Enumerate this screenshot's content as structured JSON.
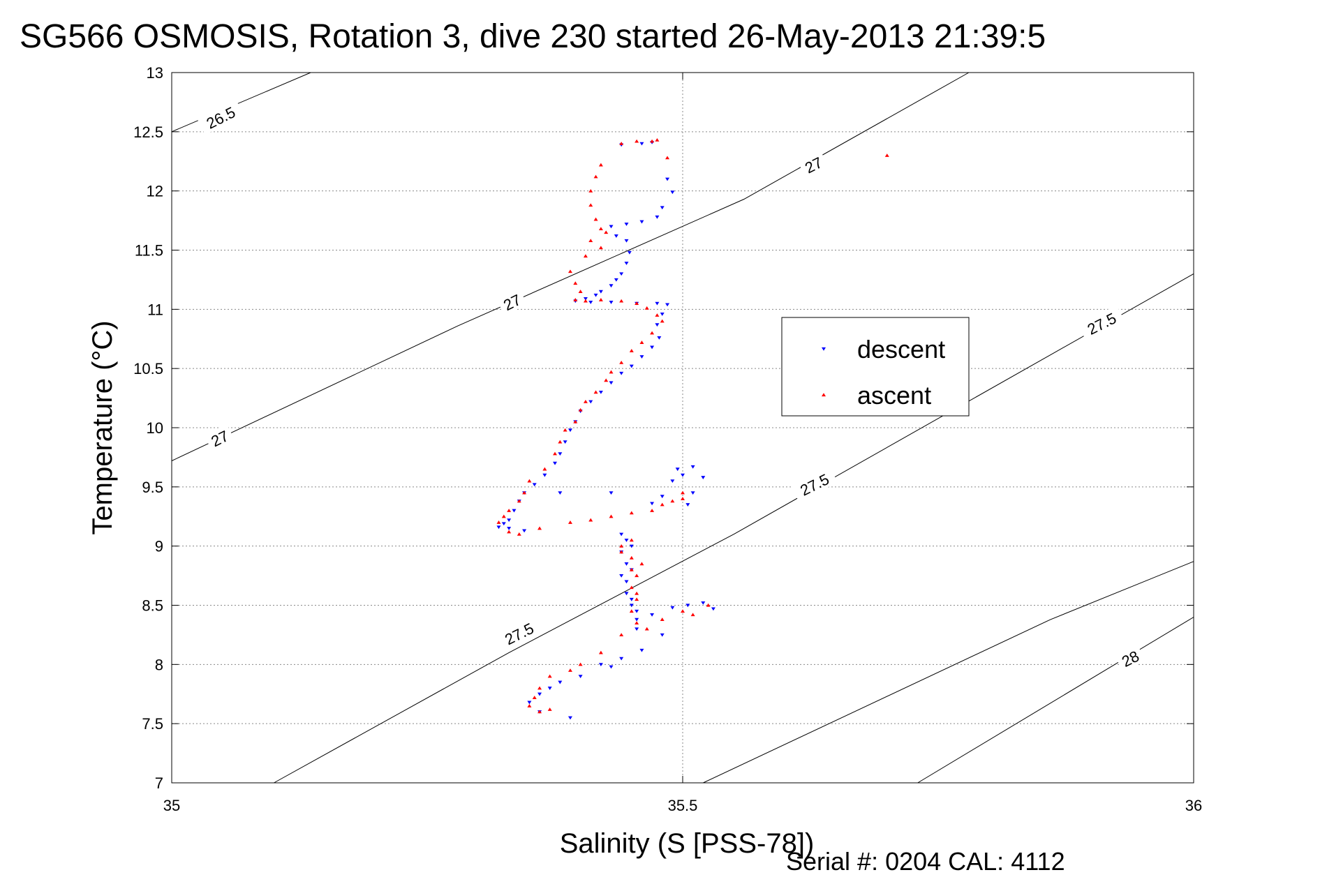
{
  "chart_data": {
    "type": "scatter",
    "title": "SG566 OSMOSIS, Rotation 3, dive 230 started 26-May-2013 21:39:5",
    "xlabel": "Salinity (S [PSS-78])",
    "ylabel": "Temperature (°C)",
    "footer": "Serial #: 0204  CAL: 4112",
    "xlim": [
      35,
      36
    ],
    "ylim": [
      7,
      13
    ],
    "xticks": [
      35,
      35.5,
      36
    ],
    "xtick_labels": [
      "35",
      "35.5",
      "36"
    ],
    "yticks": [
      7,
      7.5,
      8,
      8.5,
      9,
      9.5,
      10,
      10.5,
      11,
      11.5,
      12,
      12.5,
      13
    ],
    "ytick_labels": [
      "7",
      "7.5",
      "8",
      "8.5",
      "9",
      "9.5",
      "10",
      "10.5",
      "11",
      "11.5",
      "12",
      "12.5",
      "13"
    ],
    "grid": true,
    "legend": {
      "position": "right",
      "entries": [
        "descent",
        "ascent"
      ]
    },
    "colors": {
      "descent": "#0000ff",
      "ascent": "#ff0000",
      "contour": "#000000"
    },
    "contours": [
      {
        "value": 26.5,
        "label": "26.5",
        "points": [
          [
            35,
            12.5
          ],
          [
            35.136,
            13
          ]
        ]
      },
      {
        "value": 27,
        "label": "27",
        "points": [
          [
            35,
            9.72
          ],
          [
            35.28,
            10.86
          ],
          [
            35.56,
            11.93
          ],
          [
            35.78,
            13
          ]
        ]
      },
      {
        "value": 27,
        "label": "27",
        "points": [
          [
            35.52,
            7
          ],
          [
            35.86,
            8.38
          ],
          [
            36,
            8.87
          ]
        ]
      },
      {
        "value": 27.5,
        "label": "27.5",
        "points": [
          [
            35.1,
            7
          ],
          [
            35.33,
            8.1
          ],
          [
            35.55,
            9.1
          ],
          [
            36,
            11.3
          ]
        ]
      },
      {
        "value": 28,
        "label": "28",
        "points": [
          [
            35.73,
            7
          ],
          [
            36,
            8.4
          ]
        ]
      }
    ],
    "contour_labels": [
      {
        "text": "26.5",
        "x": 35.048,
        "y": 12.62
      },
      {
        "text": "27",
        "x": 35.333,
        "y": 11.06
      },
      {
        "text": "27",
        "x": 35.628,
        "y": 12.22
      },
      {
        "text": "27",
        "x": 35.047,
        "y": 9.91
      },
      {
        "text": "27.5",
        "x": 35.34,
        "y": 8.26
      },
      {
        "text": "27.5",
        "x": 35.629,
        "y": 9.52
      },
      {
        "text": "27.5",
        "x": 35.91,
        "y": 10.88
      },
      {
        "text": "28",
        "x": 35.938,
        "y": 8.05
      }
    ],
    "series": [
      {
        "name": "descent",
        "marker": "triangle-down",
        "points": [
          [
            35.44,
            12.39
          ],
          [
            35.46,
            12.4
          ],
          [
            35.47,
            12.41
          ],
          [
            35.485,
            12.1
          ],
          [
            35.49,
            11.99
          ],
          [
            35.48,
            11.86
          ],
          [
            35.475,
            11.78
          ],
          [
            35.46,
            11.74
          ],
          [
            35.445,
            11.72
          ],
          [
            35.43,
            11.7
          ],
          [
            35.435,
            11.62
          ],
          [
            35.445,
            11.58
          ],
          [
            35.448,
            11.48
          ],
          [
            35.445,
            11.39
          ],
          [
            35.44,
            11.3
          ],
          [
            35.435,
            11.25
          ],
          [
            35.43,
            11.2
          ],
          [
            35.42,
            11.15
          ],
          [
            35.415,
            11.12
          ],
          [
            35.405,
            11.09
          ],
          [
            35.395,
            11.07
          ],
          [
            35.41,
            11.06
          ],
          [
            35.43,
            11.06
          ],
          [
            35.455,
            11.05
          ],
          [
            35.475,
            11.05
          ],
          [
            35.485,
            11.04
          ],
          [
            35.48,
            10.96
          ],
          [
            35.475,
            10.87
          ],
          [
            35.477,
            10.76
          ],
          [
            35.47,
            10.68
          ],
          [
            35.46,
            10.6
          ],
          [
            35.45,
            10.52
          ],
          [
            35.44,
            10.46
          ],
          [
            35.43,
            10.38
          ],
          [
            35.42,
            10.3
          ],
          [
            35.41,
            10.22
          ],
          [
            35.4,
            10.14
          ],
          [
            35.395,
            10.05
          ],
          [
            35.39,
            9.98
          ],
          [
            35.385,
            9.88
          ],
          [
            35.38,
            9.78
          ],
          [
            35.375,
            9.7
          ],
          [
            35.365,
            9.6
          ],
          [
            35.355,
            9.52
          ],
          [
            35.345,
            9.45
          ],
          [
            35.34,
            9.38
          ],
          [
            35.335,
            9.3
          ],
          [
            35.33,
            9.22
          ],
          [
            35.325,
            9.19
          ],
          [
            35.32,
            9.16
          ],
          [
            35.33,
            9.15
          ],
          [
            35.345,
            9.13
          ],
          [
            35.38,
            9.45
          ],
          [
            35.43,
            9.45
          ],
          [
            35.47,
            9.36
          ],
          [
            35.48,
            9.42
          ],
          [
            35.49,
            9.55
          ],
          [
            35.495,
            9.65
          ],
          [
            35.5,
            9.6
          ],
          [
            35.51,
            9.67
          ],
          [
            35.52,
            9.58
          ],
          [
            35.51,
            9.45
          ],
          [
            35.505,
            9.35
          ],
          [
            35.44,
            9.1
          ],
          [
            35.445,
            9.05
          ],
          [
            35.45,
            9.0
          ],
          [
            35.44,
            8.95
          ],
          [
            35.445,
            8.85
          ],
          [
            35.45,
            8.8
          ],
          [
            35.44,
            8.75
          ],
          [
            35.445,
            8.7
          ],
          [
            35.445,
            8.6
          ],
          [
            35.45,
            8.55
          ],
          [
            35.45,
            8.5
          ],
          [
            35.455,
            8.45
          ],
          [
            35.455,
            8.38
          ],
          [
            35.455,
            8.3
          ],
          [
            35.47,
            8.42
          ],
          [
            35.49,
            8.48
          ],
          [
            35.505,
            8.5
          ],
          [
            35.52,
            8.52
          ],
          [
            35.53,
            8.47
          ],
          [
            35.48,
            8.25
          ],
          [
            35.46,
            8.12
          ],
          [
            35.44,
            8.05
          ],
          [
            35.42,
            8.0
          ],
          [
            35.43,
            7.98
          ],
          [
            35.4,
            7.9
          ],
          [
            35.38,
            7.85
          ],
          [
            35.37,
            7.8
          ],
          [
            35.36,
            7.75
          ],
          [
            35.35,
            7.68
          ],
          [
            35.36,
            7.6
          ],
          [
            35.39,
            7.55
          ]
        ]
      },
      {
        "name": "ascent",
        "marker": "triangle-up",
        "points": [
          [
            35.44,
            12.4
          ],
          [
            35.455,
            12.42
          ],
          [
            35.47,
            12.42
          ],
          [
            35.475,
            12.43
          ],
          [
            35.485,
            12.28
          ],
          [
            35.42,
            12.22
          ],
          [
            35.415,
            12.12
          ],
          [
            35.41,
            12.0
          ],
          [
            35.41,
            11.88
          ],
          [
            35.415,
            11.76
          ],
          [
            35.42,
            11.68
          ],
          [
            35.425,
            11.65
          ],
          [
            35.41,
            11.58
          ],
          [
            35.42,
            11.52
          ],
          [
            35.405,
            11.45
          ],
          [
            35.39,
            11.32
          ],
          [
            35.395,
            11.22
          ],
          [
            35.4,
            11.15
          ],
          [
            35.395,
            11.08
          ],
          [
            35.405,
            11.07
          ],
          [
            35.42,
            11.08
          ],
          [
            35.44,
            11.07
          ],
          [
            35.455,
            11.05
          ],
          [
            35.465,
            11.01
          ],
          [
            35.475,
            10.95
          ],
          [
            35.48,
            10.9
          ],
          [
            35.47,
            10.8
          ],
          [
            35.46,
            10.72
          ],
          [
            35.45,
            10.65
          ],
          [
            35.44,
            10.55
          ],
          [
            35.43,
            10.47
          ],
          [
            35.425,
            10.4
          ],
          [
            35.415,
            10.3
          ],
          [
            35.405,
            10.22
          ],
          [
            35.4,
            10.15
          ],
          [
            35.395,
            10.05
          ],
          [
            35.385,
            9.98
          ],
          [
            35.38,
            9.88
          ],
          [
            35.375,
            9.78
          ],
          [
            35.365,
            9.65
          ],
          [
            35.35,
            9.55
          ],
          [
            35.345,
            9.45
          ],
          [
            35.34,
            9.38
          ],
          [
            35.33,
            9.3
          ],
          [
            35.325,
            9.25
          ],
          [
            35.32,
            9.2
          ],
          [
            35.33,
            9.12
          ],
          [
            35.34,
            9.1
          ],
          [
            35.36,
            9.15
          ],
          [
            35.39,
            9.2
          ],
          [
            35.41,
            9.22
          ],
          [
            35.43,
            9.25
          ],
          [
            35.45,
            9.28
          ],
          [
            35.47,
            9.3
          ],
          [
            35.48,
            9.35
          ],
          [
            35.49,
            9.38
          ],
          [
            35.5,
            9.4
          ],
          [
            35.5,
            9.45
          ],
          [
            35.7,
            12.3
          ],
          [
            35.45,
            9.05
          ],
          [
            35.44,
            9.0
          ],
          [
            35.44,
            8.95
          ],
          [
            35.45,
            8.9
          ],
          [
            35.46,
            8.85
          ],
          [
            35.45,
            8.8
          ],
          [
            35.455,
            8.75
          ],
          [
            35.45,
            8.65
          ],
          [
            35.455,
            8.6
          ],
          [
            35.455,
            8.55
          ],
          [
            35.45,
            8.45
          ],
          [
            35.455,
            8.35
          ],
          [
            35.465,
            8.3
          ],
          [
            35.48,
            8.38
          ],
          [
            35.5,
            8.45
          ],
          [
            35.51,
            8.42
          ],
          [
            35.525,
            8.5
          ],
          [
            35.44,
            8.25
          ],
          [
            35.42,
            8.1
          ],
          [
            35.4,
            8.0
          ],
          [
            35.39,
            7.95
          ],
          [
            35.37,
            7.9
          ],
          [
            35.36,
            7.8
          ],
          [
            35.355,
            7.72
          ],
          [
            35.35,
            7.65
          ],
          [
            35.36,
            7.6
          ],
          [
            35.37,
            7.62
          ]
        ]
      }
    ]
  }
}
